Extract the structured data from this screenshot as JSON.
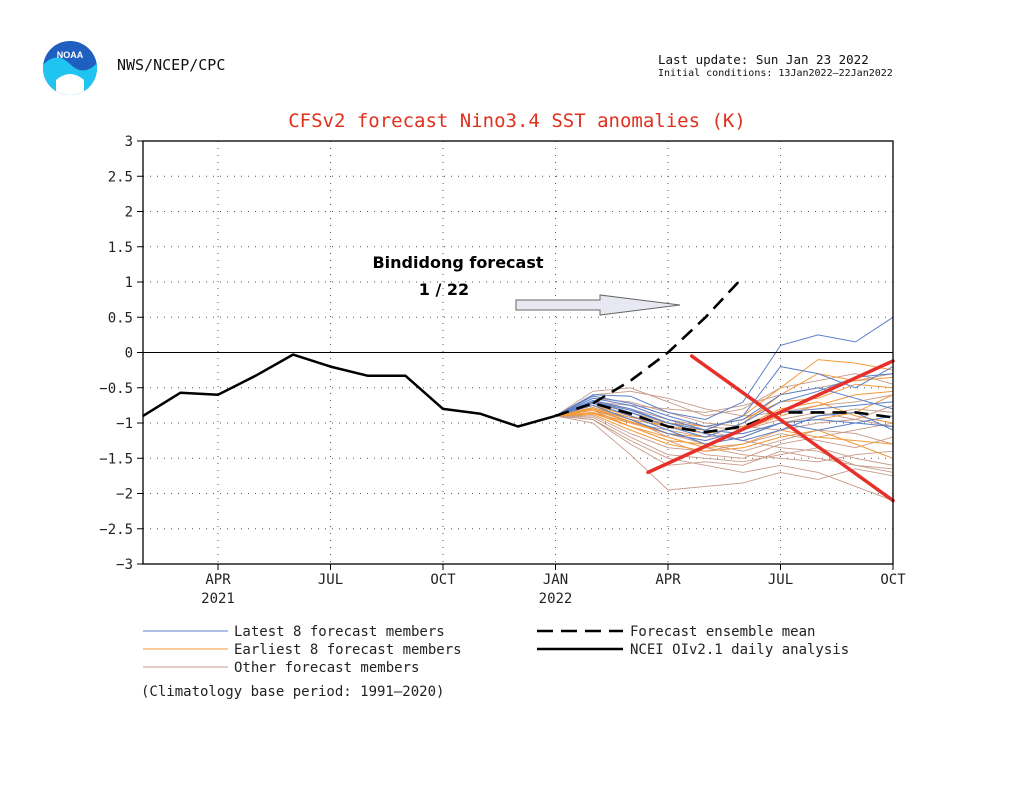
{
  "header": {
    "logo_text": "NOAA",
    "agency": "NWS/NCEP/CPC",
    "last_update": "Last update: Sun Jan 23 2022",
    "initial_conditions": "Initial conditions: 13Jan2022–22Jan2022"
  },
  "annotation": {
    "line1": "Bindidong forecast",
    "line2": "1 / 22"
  },
  "legend": {
    "latest": "Latest 8 forecast members",
    "earliest": "Earliest 8 forecast members",
    "other": "Other forecast members",
    "mean": "Forecast ensemble mean",
    "obs": "NCEI OIv2.1 daily analysis",
    "note": "(Climatology base period: 1991–2020)"
  },
  "colors": {
    "title": "#e0301e",
    "latest": "#5b7fc9",
    "earliest": "#f39a3a",
    "other": "#c79a88",
    "cross": "#e8302a",
    "observed": "#000000",
    "arrow_fill": "#e8e8f2",
    "arrow_stroke": "#666666"
  },
  "chart_data": {
    "type": "line",
    "title": "CFSv2 forecast Nino3.4 SST anomalies (K)",
    "xlabel": "",
    "ylabel": "",
    "ylim": [
      -3,
      3
    ],
    "yticks": [
      3,
      2.5,
      2,
      1.5,
      1,
      0.5,
      0,
      -0.5,
      -1,
      -1.5,
      -2,
      -2.5,
      -3
    ],
    "ytick_labels": [
      "3",
      "2.5",
      "2",
      "1.5",
      "1",
      "0.5",
      "0",
      "−0.5",
      "−1",
      "−1.5",
      "−2",
      "−2.5",
      "−3"
    ],
    "xlim": [
      "2021-02",
      "2022-10"
    ],
    "xticks": [
      {
        "x": "2021-04",
        "label": "APR",
        "year": "2021"
      },
      {
        "x": "2021-07",
        "label": "JUL",
        "year": ""
      },
      {
        "x": "2021-10",
        "label": "OCT",
        "year": ""
      },
      {
        "x": "2022-01",
        "label": "JAN",
        "year": "2022"
      },
      {
        "x": "2022-04",
        "label": "APR",
        "year": ""
      },
      {
        "x": "2022-07",
        "label": "JUL",
        "year": ""
      },
      {
        "x": "2022-10",
        "label": "OCT",
        "year": ""
      }
    ],
    "grid": true,
    "zero_line": true,
    "observed": {
      "name": "NCEI OIv2.1 daily analysis",
      "x": [
        "2021-02",
        "2021-03",
        "2021-04",
        "2021-05",
        "2021-06",
        "2021-07",
        "2021-08",
        "2021-09",
        "2021-10",
        "2021-11",
        "2021-12",
        "2022-01"
      ],
      "y": [
        -0.9,
        -0.57,
        -0.6,
        -0.33,
        -0.03,
        -0.2,
        -0.33,
        -0.33,
        -0.8,
        -0.87,
        -1.05,
        -0.9
      ]
    },
    "ensemble_mean": {
      "name": "Forecast ensemble mean",
      "x": [
        "2022-01",
        "2022-02",
        "2022-03",
        "2022-04",
        "2022-05",
        "2022-06",
        "2022-07",
        "2022-08",
        "2022-09",
        "2022-10"
      ],
      "y": [
        -0.9,
        -0.72,
        -0.87,
        -1.05,
        -1.13,
        -1.05,
        -0.85,
        -0.85,
        -0.85,
        -0.92
      ]
    },
    "bindidong_forecast": {
      "x": [
        "2022-02",
        "2022-03",
        "2022-04",
        "2022-05",
        "2022-06"
      ],
      "y": [
        -0.72,
        -0.4,
        0.0,
        0.5,
        1.07
      ]
    },
    "members": {
      "x": [
        "2022-01",
        "2022-02",
        "2022-03",
        "2022-04",
        "2022-05",
        "2022-06",
        "2022-07",
        "2022-08",
        "2022-09",
        "2022-10"
      ],
      "latest": [
        [
          -0.9,
          -0.6,
          -0.62,
          -0.85,
          -0.95,
          -0.7,
          0.1,
          0.25,
          0.15,
          0.5
        ],
        [
          -0.9,
          -0.65,
          -0.75,
          -0.95,
          -1.1,
          -0.9,
          -0.2,
          -0.3,
          -0.5,
          -0.2
        ],
        [
          -0.9,
          -0.7,
          -0.85,
          -1.05,
          -1.2,
          -1.0,
          -0.7,
          -0.55,
          -0.35,
          -0.3
        ],
        [
          -0.9,
          -0.75,
          -0.95,
          -1.15,
          -1.25,
          -1.1,
          -0.85,
          -0.8,
          -0.75,
          -0.7
        ],
        [
          -0.9,
          -0.68,
          -0.8,
          -1.0,
          -1.1,
          -1.15,
          -1.0,
          -0.95,
          -1.0,
          -1.05
        ],
        [
          -0.9,
          -0.72,
          -0.9,
          -1.1,
          -1.3,
          -1.2,
          -1.0,
          -1.1,
          -1.0,
          -0.9
        ],
        [
          -0.9,
          -0.62,
          -0.72,
          -0.9,
          -1.05,
          -0.95,
          -0.6,
          -0.5,
          -0.65,
          -0.8
        ],
        [
          -0.9,
          -0.7,
          -0.82,
          -1.0,
          -1.15,
          -1.25,
          -1.1,
          -0.9,
          -0.85,
          -1.1
        ]
      ],
      "earliest": [
        [
          -0.9,
          -0.8,
          -0.95,
          -1.05,
          -1.1,
          -0.9,
          -0.5,
          -0.1,
          -0.15,
          -0.25
        ],
        [
          -0.9,
          -0.85,
          -1.0,
          -1.15,
          -1.2,
          -1.0,
          -0.6,
          -0.3,
          -0.4,
          -0.35
        ],
        [
          -0.9,
          -0.78,
          -0.92,
          -1.0,
          -1.05,
          -0.95,
          -0.7,
          -0.65,
          -0.45,
          -0.5
        ],
        [
          -0.9,
          -0.82,
          -1.05,
          -1.25,
          -1.3,
          -1.2,
          -1.0,
          -0.95,
          -0.85,
          -0.6
        ],
        [
          -0.9,
          -0.88,
          -1.1,
          -1.3,
          -1.4,
          -1.35,
          -1.2,
          -1.1,
          -1.3,
          -1.5
        ],
        [
          -0.9,
          -0.8,
          -0.98,
          -1.15,
          -1.25,
          -1.1,
          -0.9,
          -0.75,
          -0.6,
          -0.55
        ],
        [
          -0.9,
          -0.75,
          -0.9,
          -1.05,
          -1.15,
          -1.05,
          -0.8,
          -0.7,
          -0.9,
          -1.0
        ],
        [
          -0.9,
          -0.86,
          -1.05,
          -1.2,
          -1.35,
          -1.3,
          -1.1,
          -1.2,
          -1.25,
          -1.3
        ]
      ],
      "other": [
        [
          -0.9,
          -0.55,
          -0.5,
          -0.7,
          -0.9,
          -0.8,
          -0.5,
          -0.4,
          -0.3,
          -0.45
        ],
        [
          -0.9,
          -0.95,
          -1.3,
          -1.6,
          -1.55,
          -1.6,
          -1.4,
          -1.5,
          -1.6,
          -1.7
        ],
        [
          -0.9,
          -1.0,
          -1.45,
          -1.95,
          -1.9,
          -1.85,
          -1.7,
          -1.8,
          -1.65,
          -1.75
        ],
        [
          -0.9,
          -0.92,
          -1.2,
          -1.45,
          -1.5,
          -1.55,
          -1.45,
          -1.35,
          -1.5,
          -1.6
        ],
        [
          -0.9,
          -0.6,
          -0.55,
          -0.65,
          -0.8,
          -0.9,
          -0.85,
          -0.75,
          -0.7,
          -0.6
        ],
        [
          -0.9,
          -0.78,
          -0.95,
          -1.2,
          -1.35,
          -1.45,
          -1.5,
          -1.55,
          -1.45,
          -1.4
        ],
        [
          -0.9,
          -0.7,
          -0.8,
          -0.95,
          -1.05,
          -1.1,
          -0.95,
          -0.85,
          -0.95,
          -1.05
        ],
        [
          -0.9,
          -0.9,
          -1.15,
          -1.35,
          -1.4,
          -1.3,
          -1.15,
          -1.25,
          -1.35,
          -1.2
        ],
        [
          -0.9,
          -0.65,
          -0.7,
          -0.85,
          -1.0,
          -1.05,
          -1.1,
          -1.0,
          -0.95,
          -0.75
        ],
        [
          -0.9,
          -0.85,
          -1.05,
          -1.25,
          -1.45,
          -1.5,
          -1.3,
          -1.2,
          -1.1,
          -1.0
        ],
        [
          -0.9,
          -0.8,
          -1.0,
          -1.1,
          -1.2,
          -1.15,
          -1.0,
          -0.9,
          -0.8,
          -0.85
        ],
        [
          -0.9,
          -0.72,
          -0.85,
          -1.0,
          -1.1,
          -1.25,
          -1.35,
          -1.4,
          -1.6,
          -1.65
        ],
        [
          -0.9,
          -0.95,
          -1.25,
          -1.5,
          -1.6,
          -1.7,
          -1.6,
          -1.7,
          -1.9,
          -2.1
        ],
        [
          -0.9,
          -0.7,
          -0.75,
          -0.8,
          -0.85,
          -0.75,
          -0.6,
          -0.5,
          -0.4,
          -0.3
        ],
        [
          -0.9,
          -0.82,
          -0.98,
          -1.15,
          -1.3,
          -1.4,
          -1.25,
          -1.1,
          -1.15,
          -1.3
        ]
      ]
    },
    "overlay_cross": [
      {
        "x": [
          "2022-03-15",
          "2022-10"
        ],
        "y": [
          -1.7,
          -0.12
        ]
      },
      {
        "x": [
          "2022-04-20",
          "2022-10"
        ],
        "y": [
          -0.05,
          -2.1
        ]
      }
    ]
  }
}
